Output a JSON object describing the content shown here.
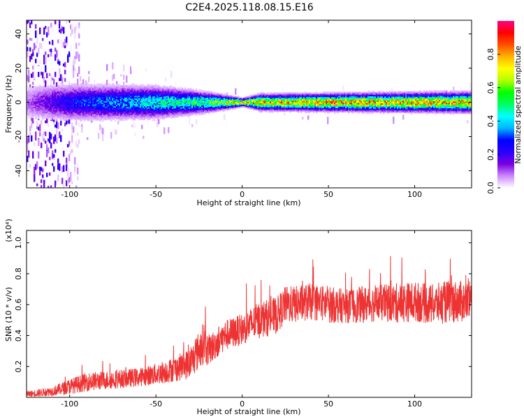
{
  "title": "C2E4.2025.118.08.15.E16",
  "chart_data": [
    {
      "type": "heatmap",
      "xlabel": "Height of straight line (km)",
      "ylabel": "Frequency (Hz)",
      "xlim": [
        -125,
        133
      ],
      "ylim": [
        -50,
        48
      ],
      "xticks": [
        -100,
        -50,
        0,
        50,
        100
      ],
      "yticks": [
        -40,
        -20,
        0,
        20,
        40
      ],
      "colorbar": {
        "label": "Normalized spectral amplitude",
        "range": [
          0,
          1
        ],
        "ticks": [
          0.0,
          0.2,
          0.4,
          0.6,
          0.8
        ],
        "colors": [
          "#ffffff",
          "#cc88ff",
          "#7a00e0",
          "#2a00ff",
          "#0000ff",
          "#00b4ff",
          "#00ffff",
          "#00ff60",
          "#00ff00",
          "#b4ff00",
          "#ffff00",
          "#ffb400",
          "#ff5000",
          "#ff0000",
          "#ff0080"
        ]
      },
      "band_center_hz": 0,
      "band_halfwidth_hz": [
        [
          -125,
          10
        ],
        [
          -50,
          8
        ],
        [
          -20,
          5
        ],
        [
          0,
          2
        ],
        [
          10,
          4
        ],
        [
          133,
          5
        ]
      ],
      "peak_amplitude": [
        [
          -125,
          0.1
        ],
        [
          -100,
          0.3
        ],
        [
          -50,
          0.5
        ],
        [
          -20,
          0.6
        ],
        [
          0,
          0.92
        ],
        [
          20,
          0.85
        ],
        [
          60,
          0.9
        ],
        [
          133,
          0.88
        ]
      ]
    },
    {
      "type": "line",
      "xlabel": "Height of straight line (km)",
      "ylabel": "SNR (10 * v/v)",
      "y_multiplier": "(x10⁴)",
      "xlim": [
        -125,
        133
      ],
      "ylim": [
        0,
        1.08
      ],
      "xticks": [
        -100,
        -50,
        0,
        50,
        100
      ],
      "yticks": [
        0.2,
        0.4,
        0.6,
        0.8,
        1.0
      ],
      "series": [
        {
          "color": "#ee3333",
          "x": [
            -125,
            -110,
            -100,
            -90,
            -80,
            -70,
            -60,
            -50,
            -40,
            -30,
            -22,
            -20,
            -10,
            0,
            10,
            20,
            25,
            30,
            40,
            50,
            60,
            70,
            80,
            90,
            100,
            110,
            120,
            133
          ],
          "y": [
            0.02,
            0.04,
            0.07,
            0.1,
            0.11,
            0.12,
            0.13,
            0.15,
            0.18,
            0.22,
            0.36,
            0.3,
            0.4,
            0.44,
            0.5,
            0.53,
            0.6,
            0.6,
            0.62,
            0.6,
            0.59,
            0.6,
            0.61,
            0.61,
            0.62,
            0.6,
            0.62,
            0.62
          ],
          "spread": [
            0.02,
            0.03,
            0.05,
            0.06,
            0.06,
            0.06,
            0.06,
            0.07,
            0.08,
            0.1,
            0.14,
            0.1,
            0.1,
            0.1,
            0.12,
            0.12,
            0.12,
            0.12,
            0.12,
            0.12,
            0.11,
            0.12,
            0.12,
            0.13,
            0.13,
            0.13,
            0.14,
            0.13
          ]
        }
      ]
    }
  ]
}
